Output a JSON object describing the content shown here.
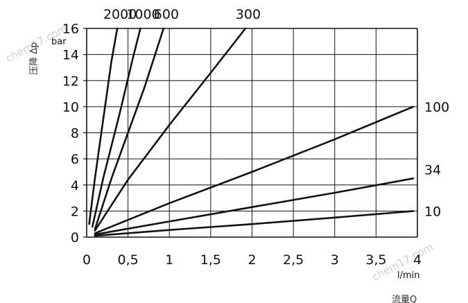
{
  "chart_data": {
    "type": "line",
    "xlabel": "流量Q",
    "xunit": "l/min",
    "ylabel": "压降 Δp",
    "yunit": "bar",
    "xlim": [
      0,
      4
    ],
    "ylim": [
      0,
      16
    ],
    "grid": true,
    "x_ticks": [
      "0",
      "0,5",
      "1",
      "1,5",
      "2",
      "2,5",
      "3",
      "3,5",
      "4"
    ],
    "y_ticks": [
      "0",
      "2",
      "4",
      "6",
      "8",
      "10",
      "12",
      "14",
      "16"
    ],
    "series": [
      {
        "name": "2000",
        "points": [
          [
            0.03,
            1.0
          ],
          [
            0.1,
            4.5
          ],
          [
            0.2,
            9.0
          ],
          [
            0.3,
            13.5
          ],
          [
            0.37,
            16.0
          ]
        ]
      },
      {
        "name": "1000",
        "points": [
          [
            0.07,
            0.8
          ],
          [
            0.2,
            4.5
          ],
          [
            0.4,
            9.5
          ],
          [
            0.55,
            13.5
          ],
          [
            0.65,
            16.0
          ]
        ]
      },
      {
        "name": "600",
        "points": [
          [
            0.1,
            0.6
          ],
          [
            0.3,
            4.5
          ],
          [
            0.5,
            8.0
          ],
          [
            0.7,
            11.5
          ],
          [
            0.93,
            16.0
          ]
        ]
      },
      {
        "name": "300",
        "points": [
          [
            0.1,
            0.5
          ],
          [
            0.5,
            4.4
          ],
          [
            1.0,
            8.6
          ],
          [
            1.5,
            12.6
          ],
          [
            1.92,
            16.0
          ]
        ]
      },
      {
        "name": "100",
        "points": [
          [
            0.1,
            0.3
          ],
          [
            1.0,
            2.6
          ],
          [
            2.0,
            5.0
          ],
          [
            3.0,
            7.5
          ],
          [
            3.95,
            10.0
          ]
        ]
      },
      {
        "name": "34",
        "points": [
          [
            0.1,
            0.2
          ],
          [
            1.0,
            1.2
          ],
          [
            2.0,
            2.3
          ],
          [
            3.0,
            3.4
          ],
          [
            3.95,
            4.5
          ]
        ]
      },
      {
        "name": "10",
        "points": [
          [
            0.1,
            0.1
          ],
          [
            1.0,
            0.55
          ],
          [
            2.0,
            1.0
          ],
          [
            3.0,
            1.5
          ],
          [
            3.95,
            2.0
          ]
        ]
      }
    ],
    "watermark": "chem17.com"
  }
}
